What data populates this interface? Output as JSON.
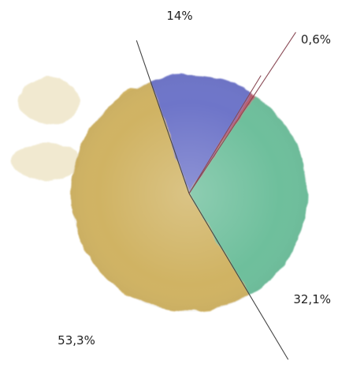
{
  "chart_data": {
    "type": "pie",
    "style": "watercolor",
    "slices": [
      {
        "label": "14%",
        "value": 14.0,
        "color": "#5a62c2"
      },
      {
        "label": "0,6%",
        "value": 0.6,
        "color": "#b04a5a"
      },
      {
        "label": "32,1%",
        "value": 32.1,
        "color": "#5bb68e"
      },
      {
        "label": "53,3%",
        "value": 53.3,
        "color": "#c9a84e"
      }
    ]
  }
}
